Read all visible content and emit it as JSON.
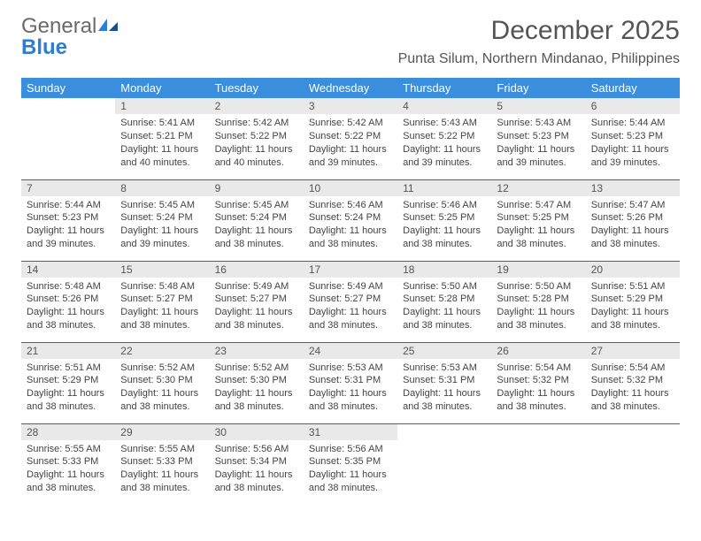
{
  "brand": {
    "word1": "General",
    "word2": "Blue"
  },
  "title": "December 2025",
  "location": "Punta Silum, Northern Mindanao, Philippines",
  "colors": {
    "header_bg": "#3b8ede",
    "header_text": "#ffffff",
    "daynum_bg": "#e9e9e9",
    "rule": "#2c6aa0",
    "brand_gray": "#6a6a6a",
    "brand_blue": "#2e7cd6"
  },
  "weekdays": [
    "Sunday",
    "Monday",
    "Tuesday",
    "Wednesday",
    "Thursday",
    "Friday",
    "Saturday"
  ],
  "weeks": [
    [
      null,
      {
        "n": "1",
        "sr": "5:41 AM",
        "ss": "5:21 PM",
        "dl": "11 hours and 40 minutes."
      },
      {
        "n": "2",
        "sr": "5:42 AM",
        "ss": "5:22 PM",
        "dl": "11 hours and 40 minutes."
      },
      {
        "n": "3",
        "sr": "5:42 AM",
        "ss": "5:22 PM",
        "dl": "11 hours and 39 minutes."
      },
      {
        "n": "4",
        "sr": "5:43 AM",
        "ss": "5:22 PM",
        "dl": "11 hours and 39 minutes."
      },
      {
        "n": "5",
        "sr": "5:43 AM",
        "ss": "5:23 PM",
        "dl": "11 hours and 39 minutes."
      },
      {
        "n": "6",
        "sr": "5:44 AM",
        "ss": "5:23 PM",
        "dl": "11 hours and 39 minutes."
      }
    ],
    [
      {
        "n": "7",
        "sr": "5:44 AM",
        "ss": "5:23 PM",
        "dl": "11 hours and 39 minutes."
      },
      {
        "n": "8",
        "sr": "5:45 AM",
        "ss": "5:24 PM",
        "dl": "11 hours and 39 minutes."
      },
      {
        "n": "9",
        "sr": "5:45 AM",
        "ss": "5:24 PM",
        "dl": "11 hours and 38 minutes."
      },
      {
        "n": "10",
        "sr": "5:46 AM",
        "ss": "5:24 PM",
        "dl": "11 hours and 38 minutes."
      },
      {
        "n": "11",
        "sr": "5:46 AM",
        "ss": "5:25 PM",
        "dl": "11 hours and 38 minutes."
      },
      {
        "n": "12",
        "sr": "5:47 AM",
        "ss": "5:25 PM",
        "dl": "11 hours and 38 minutes."
      },
      {
        "n": "13",
        "sr": "5:47 AM",
        "ss": "5:26 PM",
        "dl": "11 hours and 38 minutes."
      }
    ],
    [
      {
        "n": "14",
        "sr": "5:48 AM",
        "ss": "5:26 PM",
        "dl": "11 hours and 38 minutes."
      },
      {
        "n": "15",
        "sr": "5:48 AM",
        "ss": "5:27 PM",
        "dl": "11 hours and 38 minutes."
      },
      {
        "n": "16",
        "sr": "5:49 AM",
        "ss": "5:27 PM",
        "dl": "11 hours and 38 minutes."
      },
      {
        "n": "17",
        "sr": "5:49 AM",
        "ss": "5:27 PM",
        "dl": "11 hours and 38 minutes."
      },
      {
        "n": "18",
        "sr": "5:50 AM",
        "ss": "5:28 PM",
        "dl": "11 hours and 38 minutes."
      },
      {
        "n": "19",
        "sr": "5:50 AM",
        "ss": "5:28 PM",
        "dl": "11 hours and 38 minutes."
      },
      {
        "n": "20",
        "sr": "5:51 AM",
        "ss": "5:29 PM",
        "dl": "11 hours and 38 minutes."
      }
    ],
    [
      {
        "n": "21",
        "sr": "5:51 AM",
        "ss": "5:29 PM",
        "dl": "11 hours and 38 minutes."
      },
      {
        "n": "22",
        "sr": "5:52 AM",
        "ss": "5:30 PM",
        "dl": "11 hours and 38 minutes."
      },
      {
        "n": "23",
        "sr": "5:52 AM",
        "ss": "5:30 PM",
        "dl": "11 hours and 38 minutes."
      },
      {
        "n": "24",
        "sr": "5:53 AM",
        "ss": "5:31 PM",
        "dl": "11 hours and 38 minutes."
      },
      {
        "n": "25",
        "sr": "5:53 AM",
        "ss": "5:31 PM",
        "dl": "11 hours and 38 minutes."
      },
      {
        "n": "26",
        "sr": "5:54 AM",
        "ss": "5:32 PM",
        "dl": "11 hours and 38 minutes."
      },
      {
        "n": "27",
        "sr": "5:54 AM",
        "ss": "5:32 PM",
        "dl": "11 hours and 38 minutes."
      }
    ],
    [
      {
        "n": "28",
        "sr": "5:55 AM",
        "ss": "5:33 PM",
        "dl": "11 hours and 38 minutes."
      },
      {
        "n": "29",
        "sr": "5:55 AM",
        "ss": "5:33 PM",
        "dl": "11 hours and 38 minutes."
      },
      {
        "n": "30",
        "sr": "5:56 AM",
        "ss": "5:34 PM",
        "dl": "11 hours and 38 minutes."
      },
      {
        "n": "31",
        "sr": "5:56 AM",
        "ss": "5:35 PM",
        "dl": "11 hours and 38 minutes."
      },
      null,
      null,
      null
    ]
  ],
  "labels": {
    "sunrise": "Sunrise:",
    "sunset": "Sunset:",
    "daylight": "Daylight:"
  }
}
